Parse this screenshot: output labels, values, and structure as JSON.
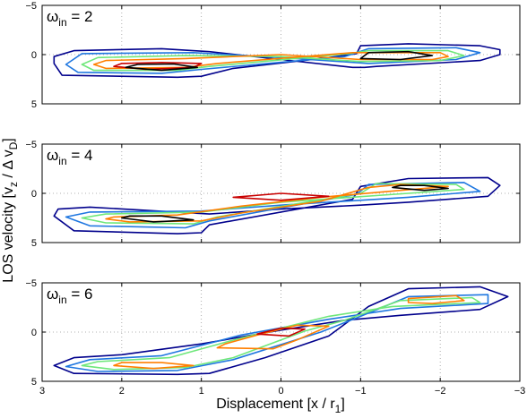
{
  "figure": {
    "xlabel_main": "Displacement [x / r",
    "xlabel_sub": "1",
    "xlabel_end": "]",
    "ylabel_main": "LOS velocity [v",
    "ylabel_sub1": "z",
    "ylabel_mid": " / Δ v",
    "ylabel_sub2": "D",
    "ylabel_end": "]"
  },
  "chart_data": [
    {
      "type": "contour",
      "panel_label": {
        "symbol": "ω",
        "subscript": "in",
        "text": " = 2"
      },
      "xlim": [
        3,
        -3
      ],
      "ylim": [
        -5,
        5
      ],
      "xticks": [
        3,
        2,
        1,
        0,
        -1,
        -2,
        -3
      ],
      "yticks": [
        -5,
        0,
        5
      ],
      "ytick_labels": [
        "−5",
        "0",
        "5"
      ],
      "xtick_labels": [],
      "grid": true,
      "contour_colors": [
        "#00008c",
        "#1f77e0",
        "#6ee77a",
        "#ff7f00",
        "#c80000",
        "#000000"
      ],
      "levels": [
        {
          "color": "#00008c",
          "points": [
            [
              2.85,
              0.9
            ],
            [
              2.75,
              2.1
            ],
            [
              1.3,
              2.3
            ],
            [
              1.0,
              2.2
            ],
            [
              0.6,
              1.4
            ],
            [
              -0.6,
              0.3
            ],
            [
              -0.95,
              -0.1
            ],
            [
              -1.0,
              -0.9
            ],
            [
              -1.6,
              -1.1
            ],
            [
              -2.5,
              -0.9
            ],
            [
              -2.75,
              -0.5
            ],
            [
              -2.75,
              0.0
            ],
            [
              -2.5,
              0.6
            ],
            [
              -1.2,
              1.2
            ],
            [
              -1.05,
              1.3
            ],
            [
              -0.9,
              1.3
            ],
            [
              0.0,
              0.5
            ],
            [
              0.9,
              -0.3
            ],
            [
              1.5,
              -0.6
            ],
            [
              2.6,
              -0.4
            ],
            [
              2.85,
              0.2
            ]
          ]
        },
        {
          "color": "#1f77e0",
          "points": [
            [
              2.7,
              1.0
            ],
            [
              2.55,
              1.8
            ],
            [
              1.5,
              1.9
            ],
            [
              1.0,
              1.5
            ],
            [
              -0.8,
              0.2
            ],
            [
              -1.1,
              -0.6
            ],
            [
              -2.2,
              -0.7
            ],
            [
              -2.5,
              -0.2
            ],
            [
              -2.2,
              0.5
            ],
            [
              -1.1,
              0.9
            ],
            [
              0.0,
              0.3
            ],
            [
              1.1,
              -0.2
            ],
            [
              2.5,
              -0.1
            ]
          ]
        },
        {
          "color": "#6ee77a",
          "points": [
            [
              2.5,
              1.0
            ],
            [
              2.35,
              1.6
            ],
            [
              1.3,
              1.6
            ],
            [
              0.9,
              1.2
            ],
            [
              -0.85,
              -0.1
            ],
            [
              -1.1,
              -0.4
            ],
            [
              -2.1,
              -0.4
            ],
            [
              -2.3,
              0.1
            ],
            [
              -2.0,
              0.6
            ],
            [
              -1.0,
              0.7
            ],
            [
              0.0,
              0.2
            ],
            [
              1.2,
              0.1
            ],
            [
              2.3,
              0.3
            ]
          ]
        },
        {
          "color": "#ff7f00",
          "points": [
            [
              2.35,
              1.0
            ],
            [
              2.2,
              1.4
            ],
            [
              1.2,
              1.3
            ],
            [
              0.8,
              0.9
            ],
            [
              -0.9,
              -0.2
            ],
            [
              -1.2,
              -0.2
            ],
            [
              -2.0,
              -0.2
            ],
            [
              -2.1,
              0.2
            ],
            [
              -1.9,
              0.5
            ],
            [
              -1.0,
              0.5
            ],
            [
              0.0,
              0.0
            ],
            [
              1.2,
              0.4
            ],
            [
              2.2,
              0.6
            ]
          ]
        },
        {
          "color": "#c80000",
          "points": [
            [
              2.1,
              1.2
            ],
            [
              1.7,
              1.5
            ],
            [
              1.1,
              1.3
            ],
            [
              1.0,
              0.9
            ],
            [
              1.5,
              0.8
            ],
            [
              2.0,
              0.9
            ]
          ]
        },
        {
          "color": "#000000",
          "points": [
            [
              1.95,
              1.3
            ],
            [
              1.5,
              1.6
            ],
            [
              1.05,
              1.3
            ],
            [
              1.35,
              0.95
            ],
            [
              1.8,
              1.0
            ]
          ]
        },
        {
          "color": "#000000",
          "points": [
            [
              -1.0,
              0.4
            ],
            [
              -1.5,
              0.5
            ],
            [
              -1.9,
              0.1
            ],
            [
              -1.6,
              -0.3
            ],
            [
              -1.1,
              -0.2
            ]
          ]
        }
      ]
    },
    {
      "type": "contour",
      "panel_label": {
        "symbol": "ω",
        "subscript": "in",
        "text": " = 4"
      },
      "xlim": [
        3,
        -3
      ],
      "ylim": [
        -5,
        5
      ],
      "xticks": [
        3,
        2,
        1,
        0,
        -1,
        -2,
        -3
      ],
      "yticks": [
        -5,
        0,
        5
      ],
      "ytick_labels": [
        "−5",
        "0",
        "5"
      ],
      "xtick_labels": [],
      "grid": true,
      "levels": [
        {
          "color": "#00008c",
          "points": [
            [
              2.85,
              2.3
            ],
            [
              2.6,
              3.8
            ],
            [
              1.3,
              4.1
            ],
            [
              1.0,
              4.0
            ],
            [
              0.9,
              3.2
            ],
            [
              -0.9,
              0.6
            ],
            [
              -1.0,
              -0.7
            ],
            [
              -1.6,
              -1.5
            ],
            [
              -2.6,
              -1.6
            ],
            [
              -2.75,
              -0.8
            ],
            [
              -2.6,
              0.3
            ],
            [
              -1.6,
              0.9
            ],
            [
              -1.0,
              1.2
            ],
            [
              0.0,
              1.6
            ],
            [
              0.9,
              2.1
            ],
            [
              2.4,
              1.4
            ],
            [
              2.8,
              1.6
            ]
          ]
        },
        {
          "color": "#1f77e0",
          "points": [
            [
              2.7,
              2.4
            ],
            [
              2.4,
              3.3
            ],
            [
              1.2,
              3.5
            ],
            [
              0.9,
              2.8
            ],
            [
              -0.95,
              0.1
            ],
            [
              -1.1,
              -0.9
            ],
            [
              -2.3,
              -1.1
            ],
            [
              -2.5,
              -0.2
            ],
            [
              -1.6,
              0.4
            ],
            [
              0.0,
              1.2
            ],
            [
              1.0,
              1.8
            ],
            [
              2.4,
              1.9
            ]
          ]
        },
        {
          "color": "#6ee77a",
          "points": [
            [
              2.5,
              2.5
            ],
            [
              2.2,
              3.0
            ],
            [
              1.1,
              3.1
            ],
            [
              0.8,
              2.4
            ],
            [
              -1.0,
              0.0
            ],
            [
              -1.2,
              -1.0
            ],
            [
              -2.2,
              -0.9
            ],
            [
              -2.3,
              -0.4
            ],
            [
              -1.6,
              0.0
            ],
            [
              0.0,
              0.9
            ],
            [
              1.0,
              1.9
            ],
            [
              2.2,
              2.1
            ]
          ]
        },
        {
          "color": "#ff7f00",
          "points": [
            [
              2.2,
              2.6
            ],
            [
              1.9,
              2.9
            ],
            [
              1.0,
              2.8
            ],
            [
              0.5,
              2.0
            ],
            [
              -0.5,
              0.8
            ],
            [
              -1.1,
              -0.6
            ],
            [
              -1.5,
              -0.9
            ],
            [
              -2.1,
              -0.7
            ],
            [
              -1.5,
              -0.3
            ],
            [
              -0.5,
              0.4
            ],
            [
              0.5,
              1.3
            ],
            [
              1.3,
              2.2
            ],
            [
              2.1,
              2.4
            ]
          ]
        },
        {
          "color": "#c80000",
          "points": [
            [
              0.6,
              0.4
            ],
            [
              0.0,
              0.7
            ],
            [
              -0.6,
              0.3
            ],
            [
              0.0,
              0.0
            ]
          ]
        },
        {
          "color": "#000000",
          "points": [
            [
              2.0,
              2.5
            ],
            [
              1.6,
              2.9
            ],
            [
              1.1,
              2.7
            ],
            [
              1.5,
              2.3
            ],
            [
              1.9,
              2.3
            ]
          ]
        },
        {
          "color": "#000000",
          "points": [
            [
              -1.4,
              -0.6
            ],
            [
              -1.8,
              -0.3
            ],
            [
              -2.1,
              -0.5
            ],
            [
              -1.8,
              -0.8
            ],
            [
              -1.5,
              -0.8
            ]
          ]
        }
      ]
    },
    {
      "type": "contour",
      "panel_label": {
        "symbol": "ω",
        "subscript": "in",
        "text": " = 6"
      },
      "xlim": [
        3,
        -3
      ],
      "ylim": [
        -5,
        5
      ],
      "xticks": [
        3,
        2,
        1,
        0,
        -1,
        -2,
        -3
      ],
      "yticks": [
        -5,
        0,
        5
      ],
      "ytick_labels": [
        "−5",
        "0",
        "5"
      ],
      "xtick_labels": [
        "3",
        "2",
        "1",
        "0",
        "−1",
        "−2",
        "−3"
      ],
      "grid": true,
      "levels": [
        {
          "color": "#00008c",
          "points": [
            [
              2.85,
              3.4
            ],
            [
              2.6,
              4.2
            ],
            [
              1.3,
              4.3
            ],
            [
              0.9,
              4.2
            ],
            [
              0.2,
              2.6
            ],
            [
              -0.6,
              0.4
            ],
            [
              -1.1,
              -2.6
            ],
            [
              -1.6,
              -4.4
            ],
            [
              -2.5,
              -4.6
            ],
            [
              -2.85,
              -3.6
            ],
            [
              -2.5,
              -2.3
            ],
            [
              -1.5,
              -1.7
            ],
            [
              -0.8,
              -1.2
            ],
            [
              0.0,
              -0.2
            ],
            [
              1.0,
              1.2
            ],
            [
              2.0,
              2.3
            ],
            [
              2.6,
              2.6
            ]
          ]
        },
        {
          "color": "#1f77e0",
          "points": [
            [
              2.7,
              3.5
            ],
            [
              2.3,
              4.0
            ],
            [
              1.3,
              3.9
            ],
            [
              0.6,
              2.8
            ],
            [
              -0.5,
              0.0
            ],
            [
              -1.0,
              -1.6
            ],
            [
              -1.6,
              -3.6
            ],
            [
              -2.6,
              -3.8
            ],
            [
              -2.6,
              -2.9
            ],
            [
              -1.5,
              -2.4
            ],
            [
              -0.6,
              -1.3
            ],
            [
              0.5,
              0.3
            ],
            [
              1.5,
              2.4
            ],
            [
              2.4,
              2.8
            ]
          ]
        },
        {
          "color": "#6ee77a",
          "points": [
            [
              2.5,
              3.4
            ],
            [
              2.1,
              3.8
            ],
            [
              1.2,
              3.6
            ],
            [
              0.6,
              2.6
            ],
            [
              -0.3,
              -0.1
            ],
            [
              -0.8,
              -1.2
            ],
            [
              -1.5,
              -3.2
            ],
            [
              -2.4,
              -3.5
            ],
            [
              -2.5,
              -3.0
            ],
            [
              -1.4,
              -2.6
            ],
            [
              -0.6,
              -1.6
            ],
            [
              0.5,
              0.6
            ],
            [
              1.4,
              2.6
            ],
            [
              2.3,
              3.0
            ]
          ]
        },
        {
          "color": "#ff7f00",
          "points": [
            [
              2.1,
              3.4
            ],
            [
              1.6,
              3.7
            ],
            [
              1.1,
              3.4
            ],
            [
              1.5,
              3.1
            ],
            [
              2.0,
              3.1
            ]
          ]
        },
        {
          "color": "#ff7f00",
          "points": [
            [
              0.8,
              1.6
            ],
            [
              0.1,
              1.7
            ],
            [
              -0.2,
              0.8
            ],
            [
              -0.6,
              -0.6
            ],
            [
              -0.2,
              -0.7
            ],
            [
              0.3,
              0.3
            ],
            [
              0.7,
              1.2
            ]
          ]
        },
        {
          "color": "#ff7f00",
          "points": [
            [
              -1.6,
              -3.4
            ],
            [
              -2.2,
              -3.7
            ],
            [
              -2.3,
              -3.2
            ],
            [
              -1.9,
              -2.9
            ],
            [
              -1.6,
              -3.0
            ]
          ]
        },
        {
          "color": "#c80000",
          "points": [
            [
              0.3,
              0.2
            ],
            [
              -0.1,
              0.4
            ],
            [
              -0.3,
              -0.3
            ],
            [
              0.0,
              -0.4
            ]
          ]
        }
      ]
    }
  ]
}
